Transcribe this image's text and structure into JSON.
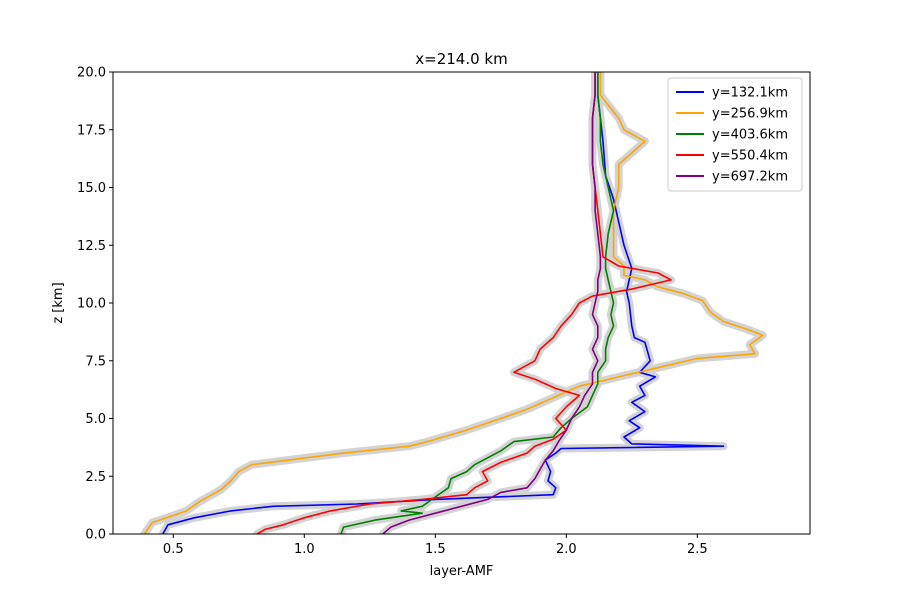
{
  "chart_data": {
    "type": "line",
    "title": "x=214.0 km",
    "xlabel": "layer-AMF",
    "ylabel": "z [km]",
    "xlim": [
      0.27,
      2.93
    ],
    "ylim": [
      0,
      20
    ],
    "xticks": [
      "0.5",
      "1.0",
      "1.5",
      "2.0",
      "2.5"
    ],
    "yticks": [
      "0.0",
      "2.5",
      "5.0",
      "7.5",
      "10.0",
      "12.5",
      "15.0",
      "17.5",
      "20.0"
    ],
    "legend_position": "top-right",
    "band_color": "#d3d3d3",
    "series": [
      {
        "name": "y=132.1km",
        "color": "#0000ff",
        "points": [
          [
            0.46,
            0
          ],
          [
            0.48,
            0.4
          ],
          [
            0.58,
            0.7
          ],
          [
            0.72,
            1.0
          ],
          [
            0.88,
            1.2
          ],
          [
            1.2,
            1.3
          ],
          [
            1.5,
            1.5
          ],
          [
            1.95,
            1.7
          ],
          [
            1.96,
            2.0
          ],
          [
            1.93,
            2.3
          ],
          [
            1.94,
            2.7
          ],
          [
            1.92,
            3.2
          ],
          [
            1.96,
            3.5
          ],
          [
            1.98,
            3.7
          ],
          [
            2.6,
            3.8
          ],
          [
            2.25,
            3.9
          ],
          [
            2.22,
            4.2
          ],
          [
            2.28,
            4.6
          ],
          [
            2.24,
            4.9
          ],
          [
            2.3,
            5.3
          ],
          [
            2.25,
            5.7
          ],
          [
            2.3,
            6.0
          ],
          [
            2.28,
            6.4
          ],
          [
            2.34,
            6.8
          ],
          [
            2.28,
            7.0
          ],
          [
            2.32,
            7.5
          ],
          [
            2.3,
            8.3
          ],
          [
            2.26,
            8.5
          ],
          [
            2.25,
            9.0
          ],
          [
            2.24,
            10.0
          ],
          [
            2.23,
            10.5
          ],
          [
            2.24,
            11.0
          ],
          [
            2.25,
            11.5
          ],
          [
            2.22,
            12.5
          ],
          [
            2.2,
            13.5
          ],
          [
            2.18,
            14.5
          ],
          [
            2.15,
            15.5
          ],
          [
            2.14,
            17.0
          ],
          [
            2.13,
            18.0
          ],
          [
            2.12,
            19.0
          ],
          [
            2.12,
            20.0
          ]
        ]
      },
      {
        "name": "y=256.9km",
        "color": "#ffa500",
        "points": [
          [
            0.39,
            0
          ],
          [
            0.42,
            0.5
          ],
          [
            0.5,
            0.8
          ],
          [
            0.55,
            1.0
          ],
          [
            0.6,
            1.4
          ],
          [
            0.68,
            1.9
          ],
          [
            0.72,
            2.3
          ],
          [
            0.75,
            2.7
          ],
          [
            0.8,
            3.0
          ],
          [
            1.15,
            3.5
          ],
          [
            1.4,
            3.8
          ],
          [
            1.47,
            4.0
          ],
          [
            1.62,
            4.5
          ],
          [
            1.75,
            5.0
          ],
          [
            1.85,
            5.4
          ],
          [
            1.95,
            5.9
          ],
          [
            2.05,
            6.4
          ],
          [
            2.2,
            6.8
          ],
          [
            2.35,
            7.2
          ],
          [
            2.5,
            7.6
          ],
          [
            2.72,
            7.8
          ],
          [
            2.7,
            8.2
          ],
          [
            2.75,
            8.6
          ],
          [
            2.68,
            8.9
          ],
          [
            2.6,
            9.2
          ],
          [
            2.55,
            9.6
          ],
          [
            2.52,
            10.1
          ],
          [
            2.45,
            10.4
          ],
          [
            2.35,
            10.7
          ],
          [
            2.3,
            11.0
          ],
          [
            2.22,
            11.2
          ],
          [
            2.22,
            11.6
          ],
          [
            2.18,
            12.0
          ],
          [
            2.18,
            13.0
          ],
          [
            2.18,
            14.0
          ],
          [
            2.2,
            15.0
          ],
          [
            2.2,
            16.0
          ],
          [
            2.3,
            17.0
          ],
          [
            2.22,
            17.5
          ],
          [
            2.2,
            18.0
          ],
          [
            2.13,
            19.0
          ],
          [
            2.13,
            20.0
          ]
        ]
      },
      {
        "name": "y=403.6km",
        "color": "#008000",
        "points": [
          [
            1.14,
            0
          ],
          [
            1.15,
            0.3
          ],
          [
            1.27,
            0.6
          ],
          [
            1.45,
            0.9
          ],
          [
            1.37,
            1.0
          ],
          [
            1.45,
            1.2
          ],
          [
            1.5,
            1.6
          ],
          [
            1.55,
            2.0
          ],
          [
            1.56,
            2.4
          ],
          [
            1.62,
            2.7
          ],
          [
            1.65,
            3.0
          ],
          [
            1.7,
            3.3
          ],
          [
            1.75,
            3.6
          ],
          [
            1.8,
            4.0
          ],
          [
            1.95,
            4.2
          ],
          [
            1.98,
            4.6
          ],
          [
            2.02,
            5.0
          ],
          [
            2.08,
            5.5
          ],
          [
            2.1,
            6.0
          ],
          [
            2.12,
            6.5
          ],
          [
            2.12,
            7.0
          ],
          [
            2.15,
            7.5
          ],
          [
            2.15,
            8.0
          ],
          [
            2.16,
            8.5
          ],
          [
            2.18,
            9.0
          ],
          [
            2.17,
            9.5
          ],
          [
            2.18,
            10.0
          ],
          [
            2.17,
            10.5
          ],
          [
            2.16,
            11.0
          ],
          [
            2.15,
            11.5
          ],
          [
            2.15,
            12.0
          ],
          [
            2.16,
            13.0
          ],
          [
            2.18,
            14.0
          ],
          [
            2.16,
            15.0
          ],
          [
            2.14,
            16.0
          ],
          [
            2.13,
            17.0
          ],
          [
            2.13,
            18.0
          ],
          [
            2.12,
            19.0
          ],
          [
            2.12,
            20.0
          ]
        ]
      },
      {
        "name": "y=550.4km",
        "color": "#ff0000",
        "points": [
          [
            0.82,
            0
          ],
          [
            0.85,
            0.2
          ],
          [
            0.92,
            0.4
          ],
          [
            1.0,
            0.7
          ],
          [
            1.1,
            1.0
          ],
          [
            1.25,
            1.3
          ],
          [
            1.45,
            1.5
          ],
          [
            1.62,
            1.7
          ],
          [
            1.65,
            2.0
          ],
          [
            1.7,
            2.3
          ],
          [
            1.68,
            2.7
          ],
          [
            1.75,
            3.1
          ],
          [
            1.85,
            3.5
          ],
          [
            1.88,
            3.8
          ],
          [
            1.95,
            4.1
          ],
          [
            2.0,
            4.5
          ],
          [
            1.96,
            5.0
          ],
          [
            2.0,
            5.5
          ],
          [
            2.05,
            6.0
          ],
          [
            1.96,
            6.3
          ],
          [
            1.88,
            6.7
          ],
          [
            1.8,
            7.0
          ],
          [
            1.88,
            7.5
          ],
          [
            1.9,
            8.0
          ],
          [
            1.95,
            8.5
          ],
          [
            1.98,
            9.0
          ],
          [
            2.02,
            9.5
          ],
          [
            2.05,
            10.0
          ],
          [
            2.1,
            10.3
          ],
          [
            2.25,
            10.6
          ],
          [
            2.4,
            11.0
          ],
          [
            2.35,
            11.3
          ],
          [
            2.2,
            11.6
          ],
          [
            2.14,
            12.0
          ],
          [
            2.13,
            13.0
          ],
          [
            2.12,
            14.0
          ],
          [
            2.11,
            15.0
          ],
          [
            2.1,
            16.0
          ],
          [
            2.1,
            17.0
          ],
          [
            2.1,
            18.0
          ],
          [
            2.11,
            19.0
          ],
          [
            2.11,
            20.0
          ]
        ]
      },
      {
        "name": "y=697.2km",
        "color": "#800080",
        "points": [
          [
            1.3,
            0
          ],
          [
            1.33,
            0.3
          ],
          [
            1.4,
            0.6
          ],
          [
            1.5,
            0.9
          ],
          [
            1.6,
            1.2
          ],
          [
            1.7,
            1.5
          ],
          [
            1.75,
            1.8
          ],
          [
            1.85,
            2.0
          ],
          [
            1.88,
            2.4
          ],
          [
            1.9,
            2.8
          ],
          [
            1.92,
            3.2
          ],
          [
            1.95,
            3.6
          ],
          [
            1.97,
            4.0
          ],
          [
            2.0,
            4.5
          ],
          [
            2.02,
            5.0
          ],
          [
            2.05,
            5.5
          ],
          [
            2.07,
            6.0
          ],
          [
            2.1,
            6.5
          ],
          [
            2.1,
            7.0
          ],
          [
            2.12,
            7.5
          ],
          [
            2.1,
            8.0
          ],
          [
            2.12,
            8.5
          ],
          [
            2.12,
            9.0
          ],
          [
            2.1,
            9.5
          ],
          [
            2.11,
            10.0
          ],
          [
            2.12,
            10.5
          ],
          [
            2.12,
            11.0
          ],
          [
            2.13,
            11.5
          ],
          [
            2.13,
            12.0
          ],
          [
            2.12,
            13.0
          ],
          [
            2.11,
            14.0
          ],
          [
            2.11,
            15.0
          ],
          [
            2.1,
            16.0
          ],
          [
            2.1,
            17.0
          ],
          [
            2.1,
            18.0
          ],
          [
            2.11,
            19.0
          ],
          [
            2.11,
            20.0
          ]
        ]
      }
    ]
  }
}
